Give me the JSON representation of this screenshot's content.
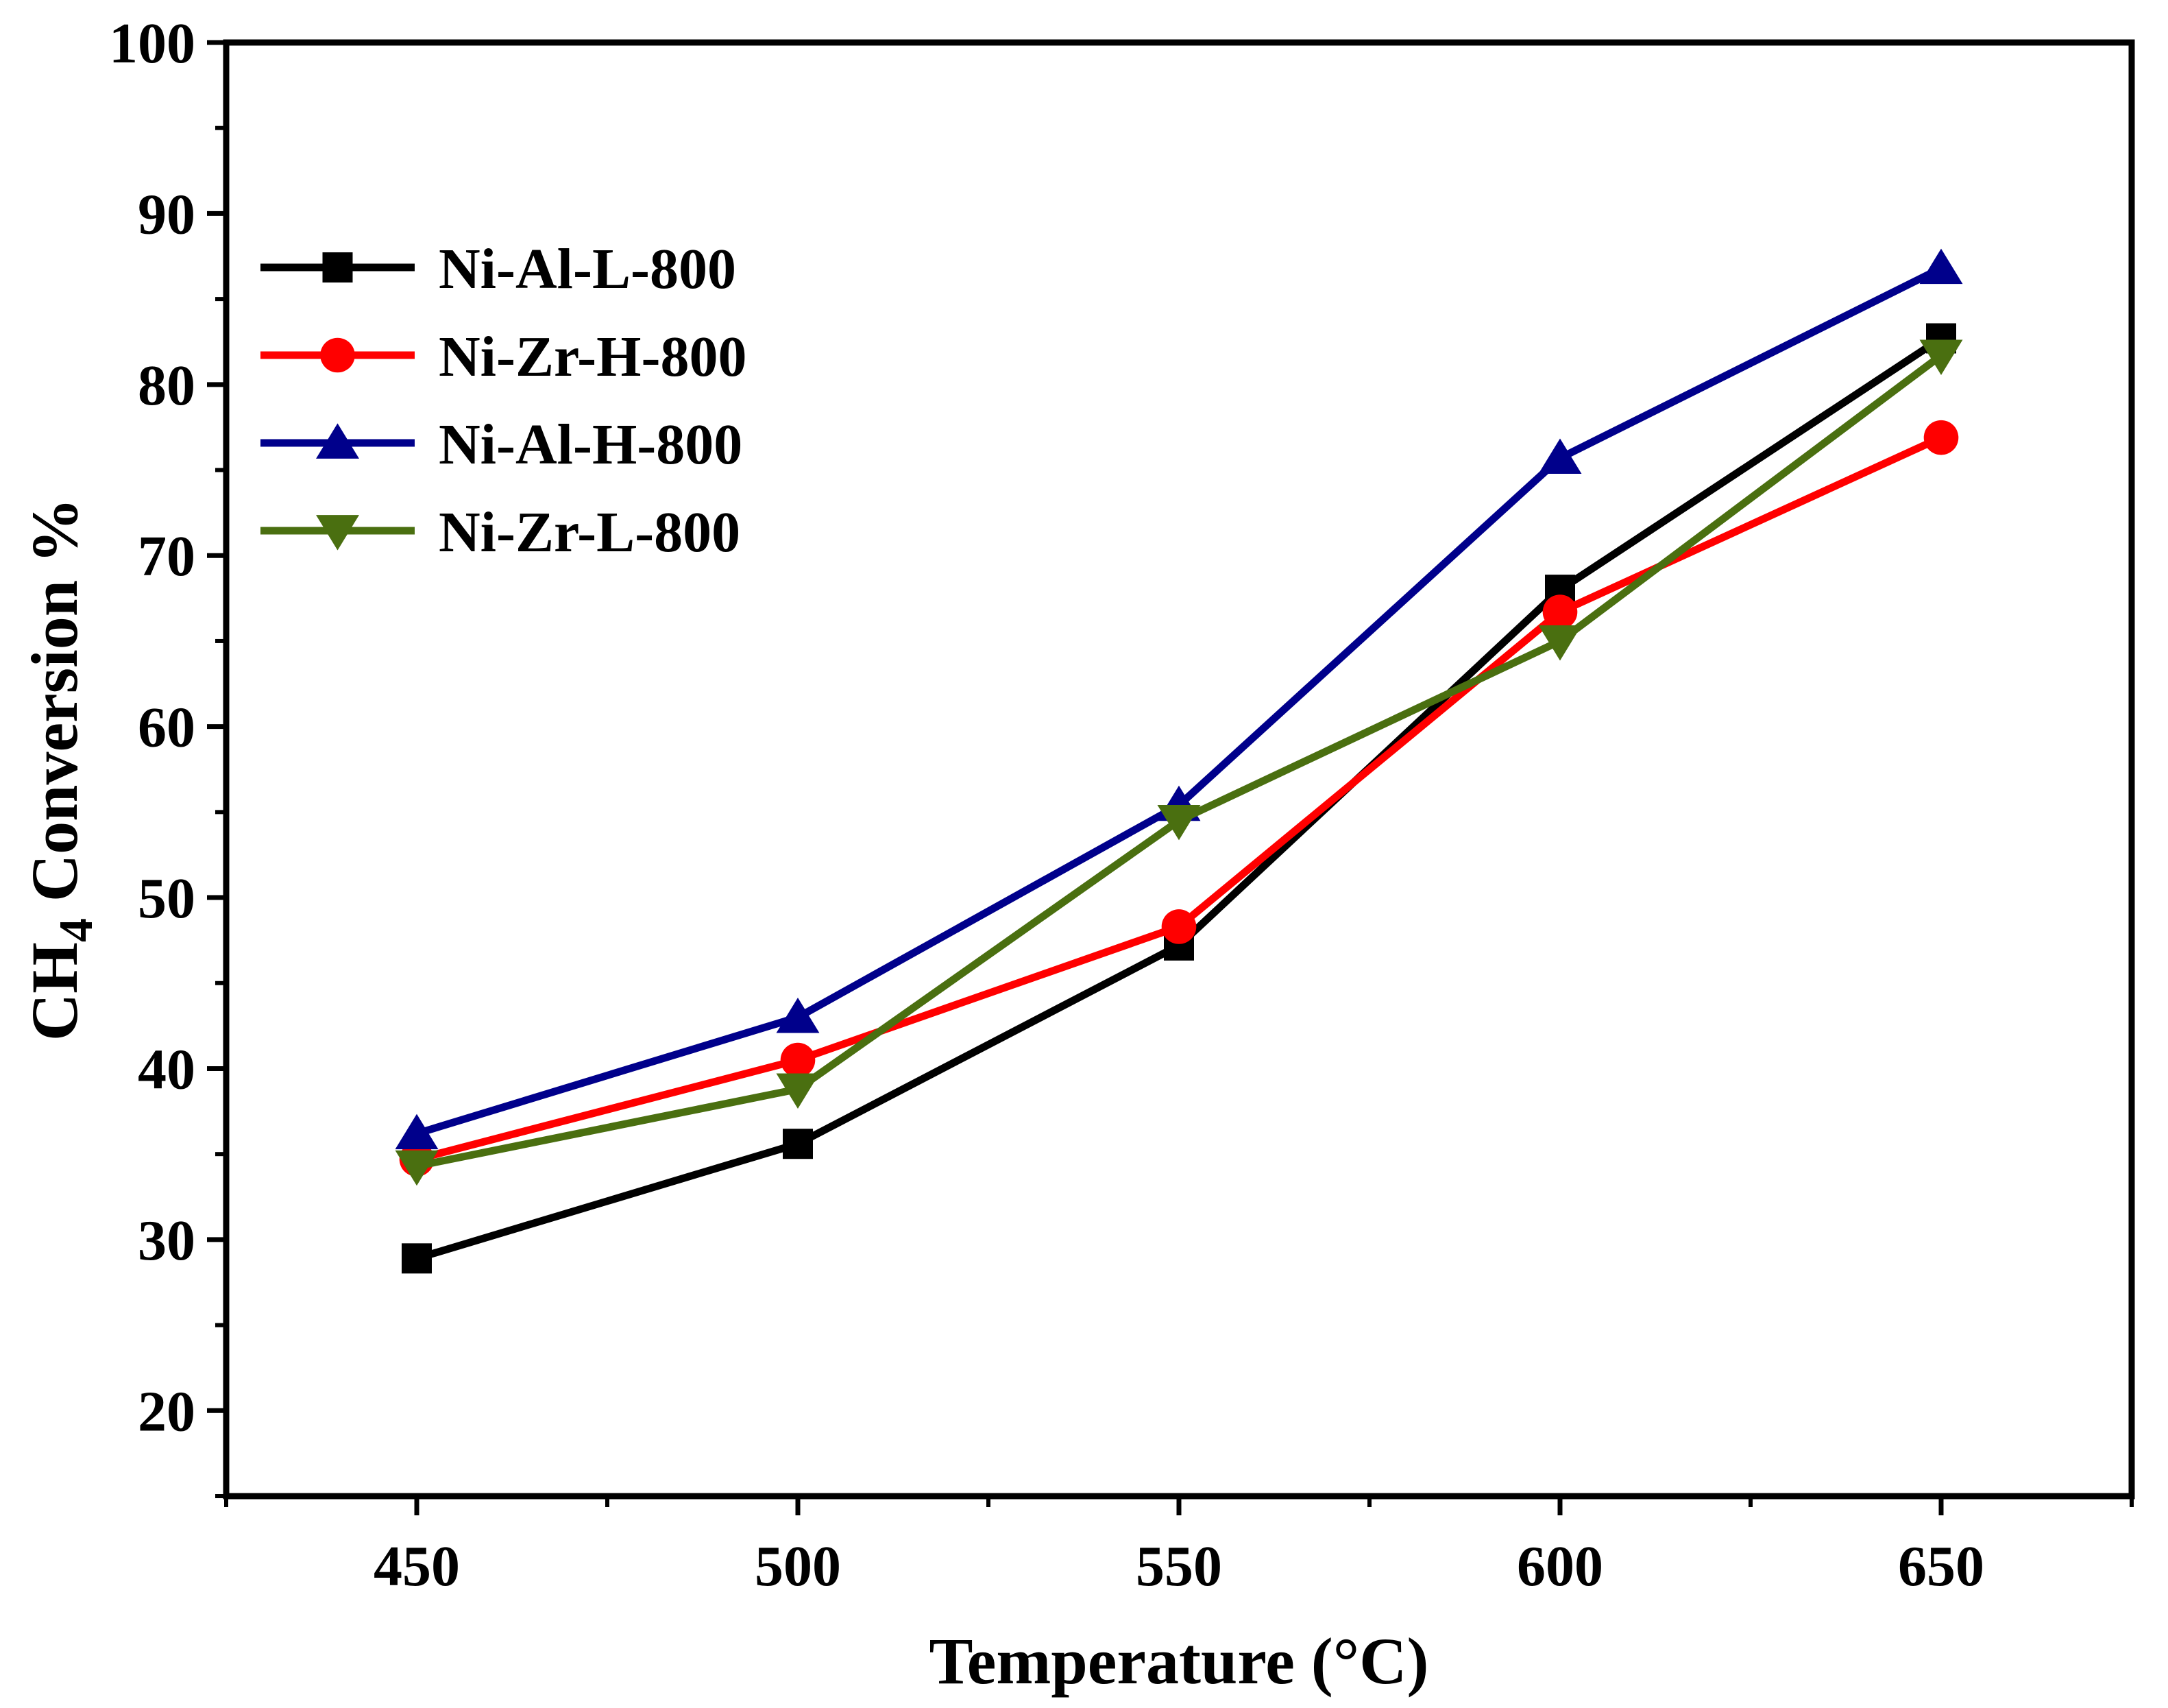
{
  "chart_data": {
    "type": "line",
    "title": "",
    "xlabel": "Temperature (°C)",
    "ylabel_main": "CH",
    "ylabel_sub": "4",
    "ylabel_rest": " Conversion %",
    "x": [
      450,
      500,
      550,
      600,
      650
    ],
    "xlim": [
      425,
      675
    ],
    "ylim": [
      15,
      100
    ],
    "xticks": [
      "450",
      "500",
      "550",
      "600",
      "650"
    ],
    "yticks": [
      "20",
      "30",
      "40",
      "50",
      "60",
      "70",
      "80",
      "90",
      "100"
    ],
    "legend_position": "upper-left",
    "grid": false,
    "series": [
      {
        "name": "Ni-Al-L-800",
        "color": "#000000",
        "marker": "square",
        "values": [
          28.9,
          35.6,
          47.2,
          68.0,
          82.7
        ]
      },
      {
        "name": "Ni-Zr-H-800",
        "color": "#ff0000",
        "marker": "circle",
        "values": [
          34.7,
          40.5,
          48.3,
          66.7,
          76.9
        ]
      },
      {
        "name": "Ni-Al-H-800",
        "color": "#00008b",
        "marker": "triangle-up",
        "values": [
          36.2,
          43.0,
          55.4,
          75.7,
          86.8
        ]
      },
      {
        "name": "Ni-Zr-L-800",
        "color": "#4a6f10",
        "marker": "triangle-down",
        "values": [
          34.3,
          38.8,
          54.5,
          65.0,
          81.7
        ]
      }
    ]
  }
}
